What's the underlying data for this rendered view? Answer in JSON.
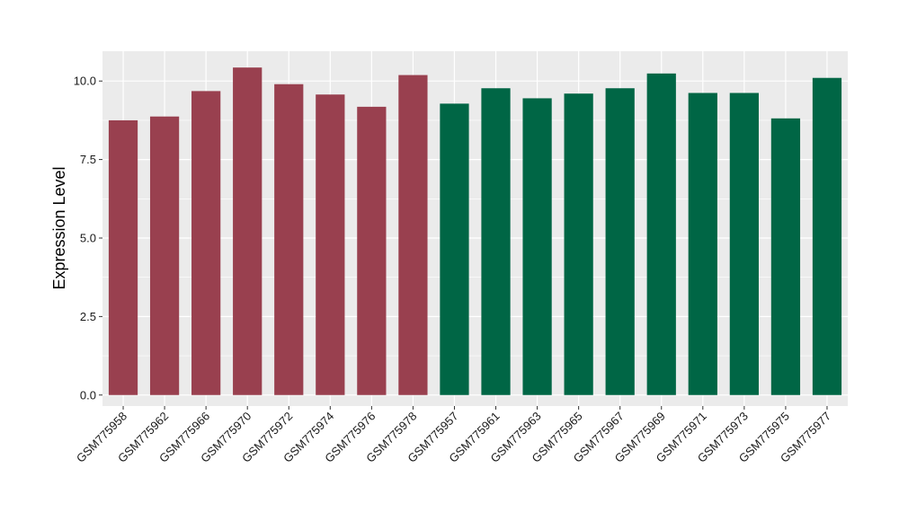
{
  "chart_data": {
    "type": "bar",
    "title": "",
    "xlabel": "",
    "ylabel": "Expression Level",
    "ylim": [
      -0.35,
      10.95
    ],
    "yticks": [
      0.0,
      2.5,
      5.0,
      7.5,
      10.0
    ],
    "ytick_labels": [
      "0.0",
      "2.5",
      "5.0",
      "7.5",
      "10.0"
    ],
    "grid": true,
    "legend": "none",
    "panel_background": "#ebebeb",
    "grid_color": "#ffffff",
    "categories": [
      "GSM775958",
      "GSM775962",
      "GSM775966",
      "GSM775970",
      "GSM775972",
      "GSM775974",
      "GSM775976",
      "GSM775978",
      "GSM775957",
      "GSM775961",
      "GSM775963",
      "GSM775965",
      "GSM775967",
      "GSM775969",
      "GSM775971",
      "GSM775973",
      "GSM775975",
      "GSM775977"
    ],
    "values": [
      8.75,
      8.87,
      9.68,
      10.43,
      9.9,
      9.57,
      9.18,
      10.19,
      9.28,
      9.77,
      9.45,
      9.6,
      9.77,
      10.24,
      9.62,
      9.62,
      8.81,
      10.1
    ],
    "groups": [
      0,
      0,
      0,
      0,
      0,
      0,
      0,
      0,
      1,
      1,
      1,
      1,
      1,
      1,
      1,
      1,
      1,
      1
    ],
    "group_colors": [
      "#99404f",
      "#006645"
    ]
  }
}
